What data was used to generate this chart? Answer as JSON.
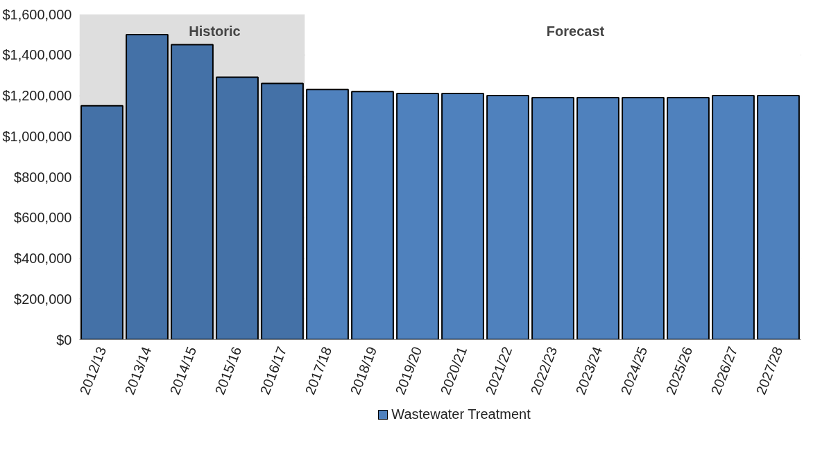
{
  "chart_data": {
    "type": "bar",
    "categories": [
      "2012/13",
      "2013/14",
      "2014/15",
      "2015/16",
      "2016/17",
      "2017/18",
      "2018/19",
      "2019/20",
      "2020/21",
      "2021/22",
      "2022/23",
      "2023/24",
      "2024/25",
      "2025/26",
      "2026/27",
      "2027/28"
    ],
    "series": [
      {
        "name": "Wastewater Treatment",
        "color": "#4f81bd",
        "values": [
          1150000,
          1500000,
          1450000,
          1290000,
          1260000,
          1230000,
          1220000,
          1210000,
          1210000,
          1200000,
          1190000,
          1190000,
          1190000,
          1190000,
          1200000,
          1200000
        ],
        "colors": [
          "#4471a7",
          "#4471a7",
          "#4471a7",
          "#4471a7",
          "#4471a7",
          "#4f81bd",
          "#4f81bd",
          "#4f81bd",
          "#4f81bd",
          "#4f81bd",
          "#4f81bd",
          "#4f81bd",
          "#4f81bd",
          "#4f81bd",
          "#4f81bd",
          "#4f81bd"
        ]
      }
    ],
    "ylim": [
      0,
      1600000
    ],
    "yticks": [
      {
        "value": 0,
        "label": "$0"
      },
      {
        "value": 200000,
        "label": "$200,000"
      },
      {
        "value": 400000,
        "label": "$400,000"
      },
      {
        "value": 600000,
        "label": "$600,000"
      },
      {
        "value": 800000,
        "label": "$800,000"
      },
      {
        "value": 1000000,
        "label": "$1,000,000"
      },
      {
        "value": 1200000,
        "label": "$1,200,000"
      },
      {
        "value": 1400000,
        "label": "$1,400,000"
      },
      {
        "value": 1600000,
        "label": "$1,600,000"
      }
    ],
    "bands": [
      {
        "axis": "x",
        "from": "2012/13",
        "to": "2016/17",
        "label": "Historic",
        "color": "#dedede"
      },
      {
        "axis": "x",
        "from": "2017/18",
        "to": "2027/28",
        "label": "Forecast",
        "color": "#ffffff"
      }
    ],
    "grid": "y",
    "legend": "bottom"
  }
}
